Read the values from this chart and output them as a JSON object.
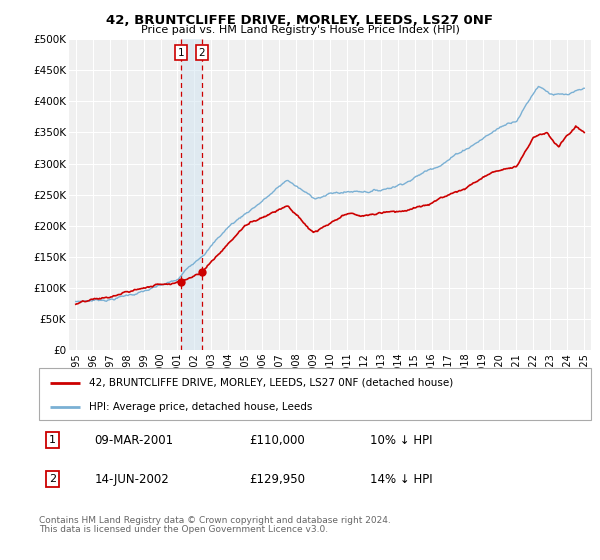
{
  "title": "42, BRUNTCLIFFE DRIVE, MORLEY, LEEDS, LS27 0NF",
  "subtitle": "Price paid vs. HM Land Registry's House Price Index (HPI)",
  "red_label": "42, BRUNTCLIFFE DRIVE, MORLEY, LEEDS, LS27 0NF (detached house)",
  "blue_label": "HPI: Average price, detached house, Leeds",
  "transactions": [
    {
      "id": 1,
      "date": "09-MAR-2001",
      "price": 110000,
      "hpi_rel": "10% ↓ HPI",
      "x_year": 2001.19
    },
    {
      "id": 2,
      "date": "14-JUN-2002",
      "price": 129950,
      "hpi_rel": "14% ↓ HPI",
      "x_year": 2002.45
    }
  ],
  "footnote1": "Contains HM Land Registry data © Crown copyright and database right 2024.",
  "footnote2": "This data is licensed under the Open Government Licence v3.0.",
  "red_color": "#cc0000",
  "blue_color": "#7ab0d4",
  "background_color": "#f0f0f0",
  "grid_color": "#ffffff",
  "vspan_color": "#d0e4f0",
  "ylim": [
    0,
    500000
  ],
  "xlim_start": 1994.6,
  "xlim_end": 2025.4,
  "yticks": [
    0,
    50000,
    100000,
    150000,
    200000,
    250000,
    300000,
    350000,
    400000,
    450000,
    500000
  ],
  "yticklabels": [
    "£0",
    "£50K",
    "£100K",
    "£150K",
    "£200K",
    "£250K",
    "£300K",
    "£350K",
    "£400K",
    "£450K",
    "£500K"
  ],
  "xticks": [
    1995,
    1996,
    1997,
    1998,
    1999,
    2000,
    2001,
    2002,
    2003,
    2004,
    2005,
    2006,
    2007,
    2008,
    2009,
    2010,
    2011,
    2012,
    2013,
    2014,
    2015,
    2016,
    2017,
    2018,
    2019,
    2020,
    2021,
    2022,
    2023,
    2024,
    2025
  ]
}
